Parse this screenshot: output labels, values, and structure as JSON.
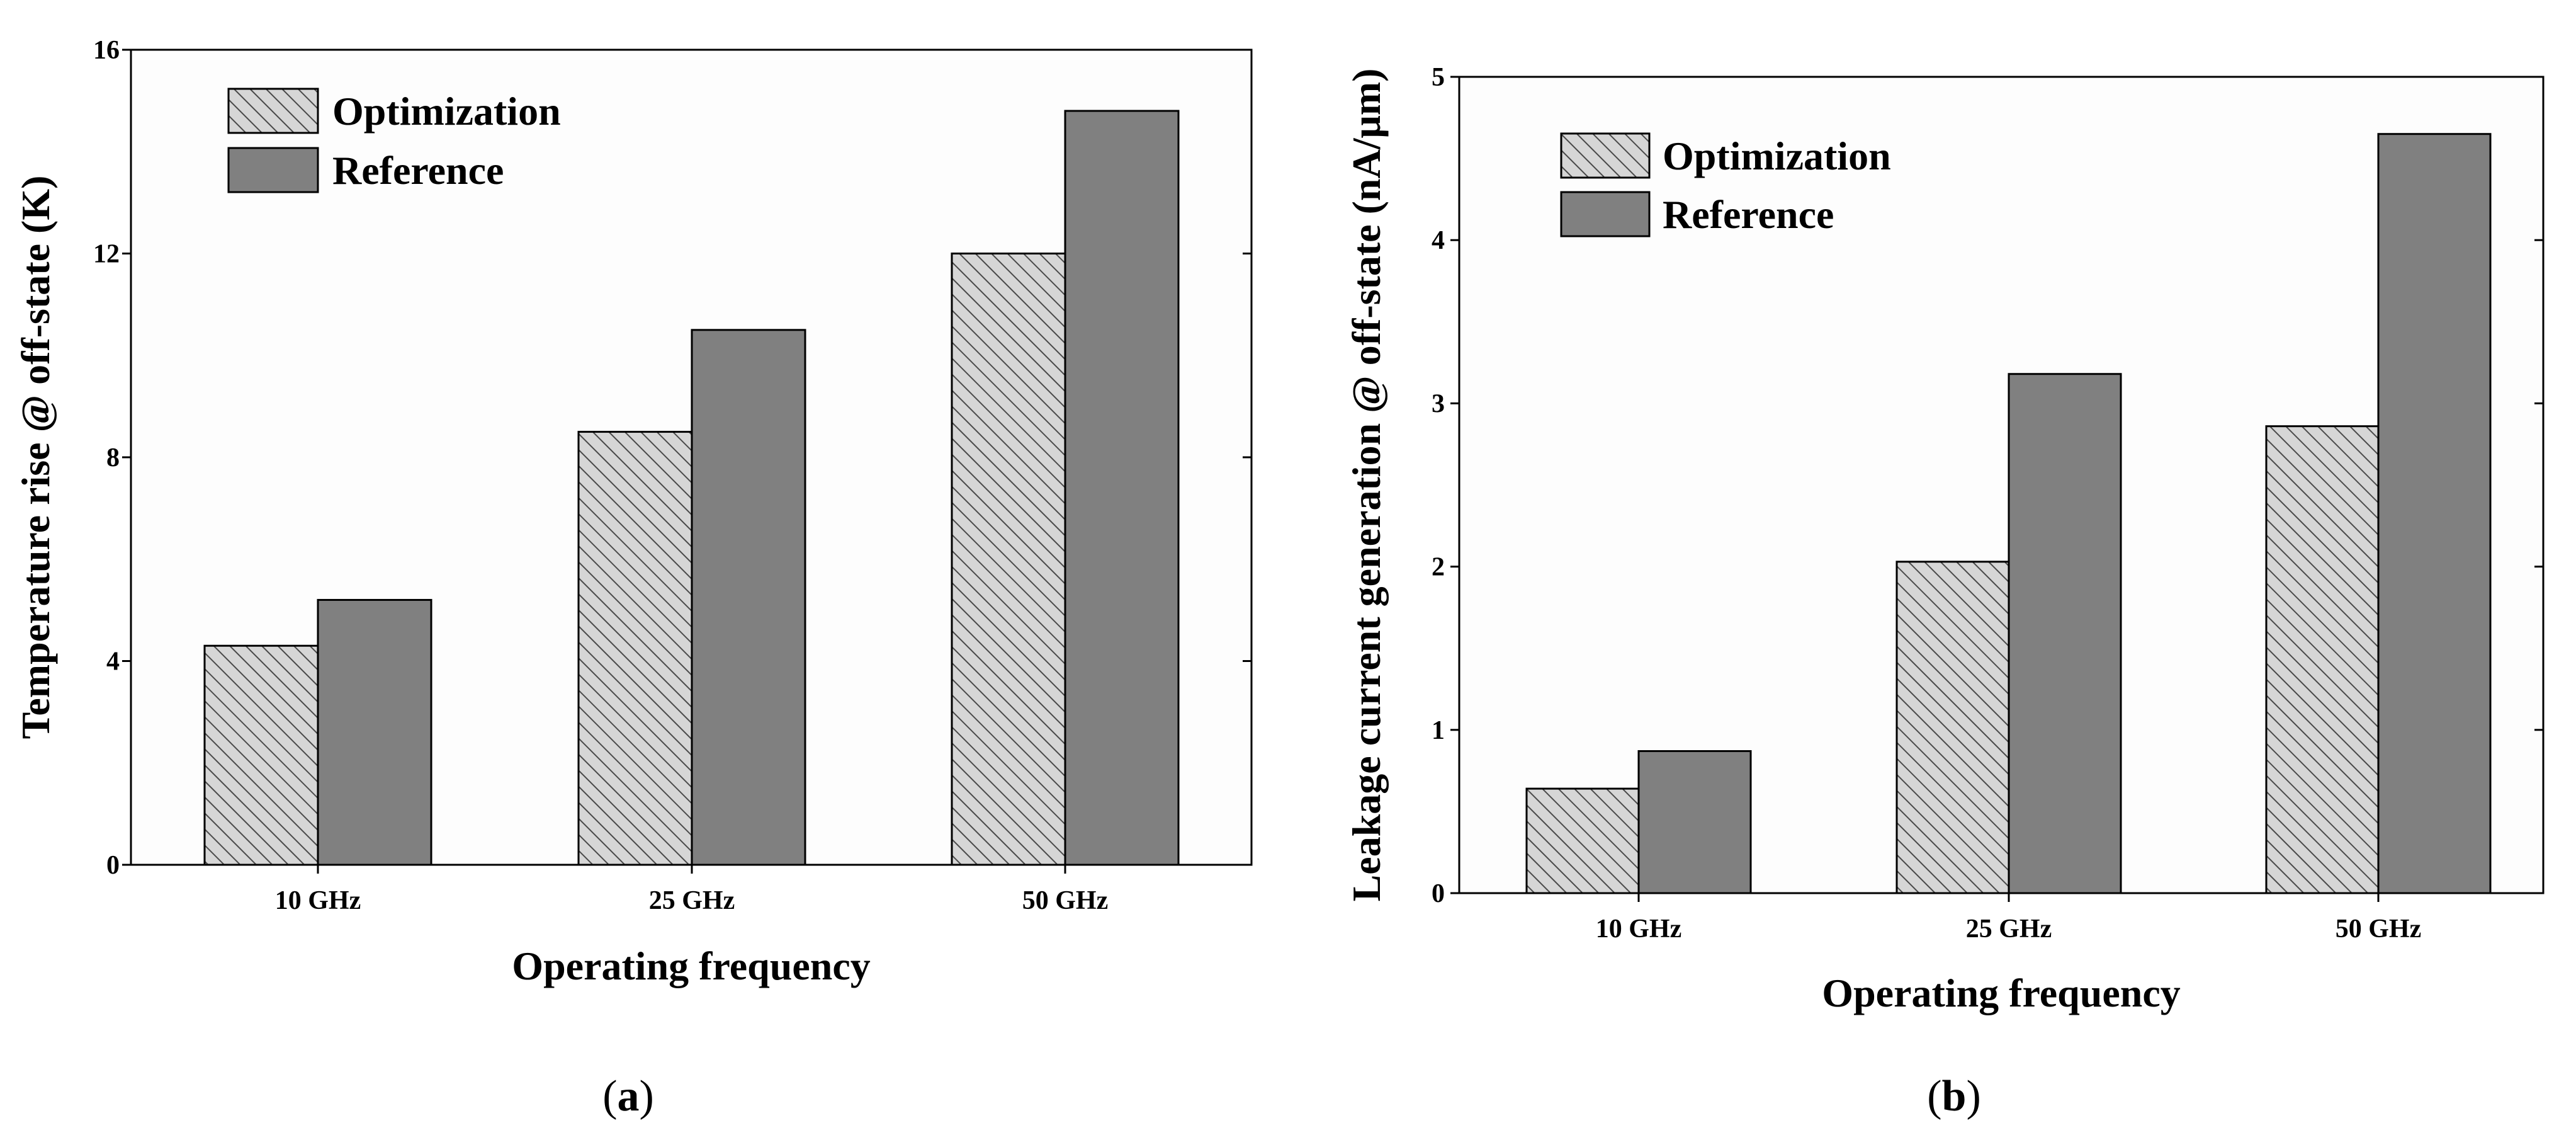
{
  "chart_data": [
    {
      "type": "bar",
      "panel_label": "a",
      "title": "",
      "categories": [
        "10 GHz",
        "25 GHz",
        "50 GHz"
      ],
      "series": [
        {
          "name": "Optimization",
          "values": [
            4.3,
            8.5,
            12.0
          ]
        },
        {
          "name": "Reference",
          "values": [
            5.2,
            10.5,
            14.8
          ]
        }
      ],
      "xlabel": "Operating frequency",
      "ylabel": "Temperature rise @ off-state (K)",
      "ylim": [
        0,
        16
      ],
      "yticks": [
        "0",
        "4",
        "8",
        "12",
        "16"
      ],
      "legend_position": "top-left",
      "grid": false
    },
    {
      "type": "bar",
      "panel_label": "b",
      "title": "",
      "categories": [
        "10 GHz",
        "25 GHz",
        "50 GHz"
      ],
      "series": [
        {
          "name": "Optimization",
          "values": [
            0.64,
            2.03,
            2.86
          ]
        },
        {
          "name": "Reference",
          "values": [
            0.87,
            3.18,
            4.65
          ]
        }
      ],
      "xlabel": "Operating frequency",
      "ylabel": "Leakage current generation @ off-state (nA/μm)",
      "ylim": [
        0,
        5
      ],
      "yticks": [
        "0",
        "1",
        "2",
        "3",
        "4",
        "5"
      ],
      "legend_position": "top-left",
      "grid": false
    }
  ],
  "styles": {
    "optimization_fill": "#d6d6d6",
    "reference_fill": "#808080",
    "axis_color": "#000000",
    "panel_background": "#fdfdfd"
  }
}
